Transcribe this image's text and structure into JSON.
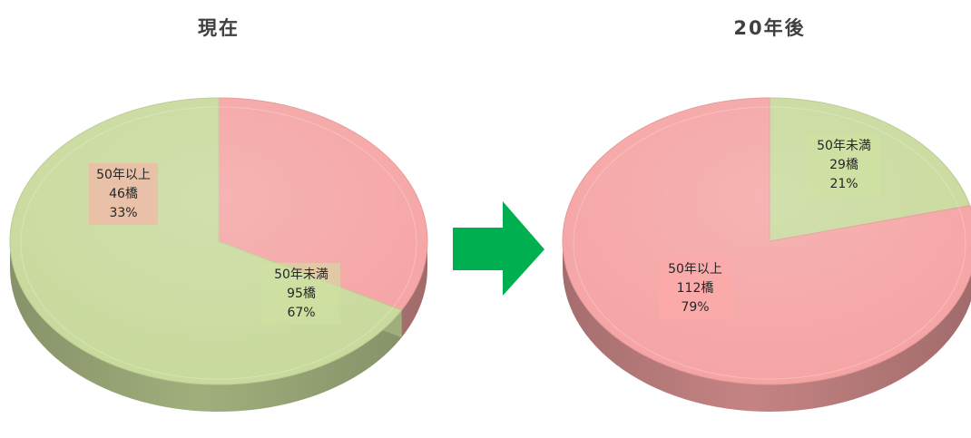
{
  "chart_data": [
    {
      "type": "pie",
      "title": "現在",
      "slices": [
        {
          "label": "50年以上",
          "count": "46橋",
          "percent": "33%",
          "value": 33,
          "color": "#f5a3a3"
        },
        {
          "label": "50年未満",
          "count": "95橋",
          "percent": "67%",
          "value": 67,
          "color": "#c8d99b"
        }
      ]
    },
    {
      "type": "pie",
      "title": "20年後",
      "slices": [
        {
          "label": "50年未満",
          "count": "29橋",
          "percent": "21%",
          "value": 21,
          "color": "#c8d99b"
        },
        {
          "label": "50年以上",
          "count": "112橋",
          "percent": "79%",
          "value": 79,
          "color": "#f5a3a3"
        }
      ]
    }
  ],
  "arrow": {
    "color": "#00b050"
  }
}
